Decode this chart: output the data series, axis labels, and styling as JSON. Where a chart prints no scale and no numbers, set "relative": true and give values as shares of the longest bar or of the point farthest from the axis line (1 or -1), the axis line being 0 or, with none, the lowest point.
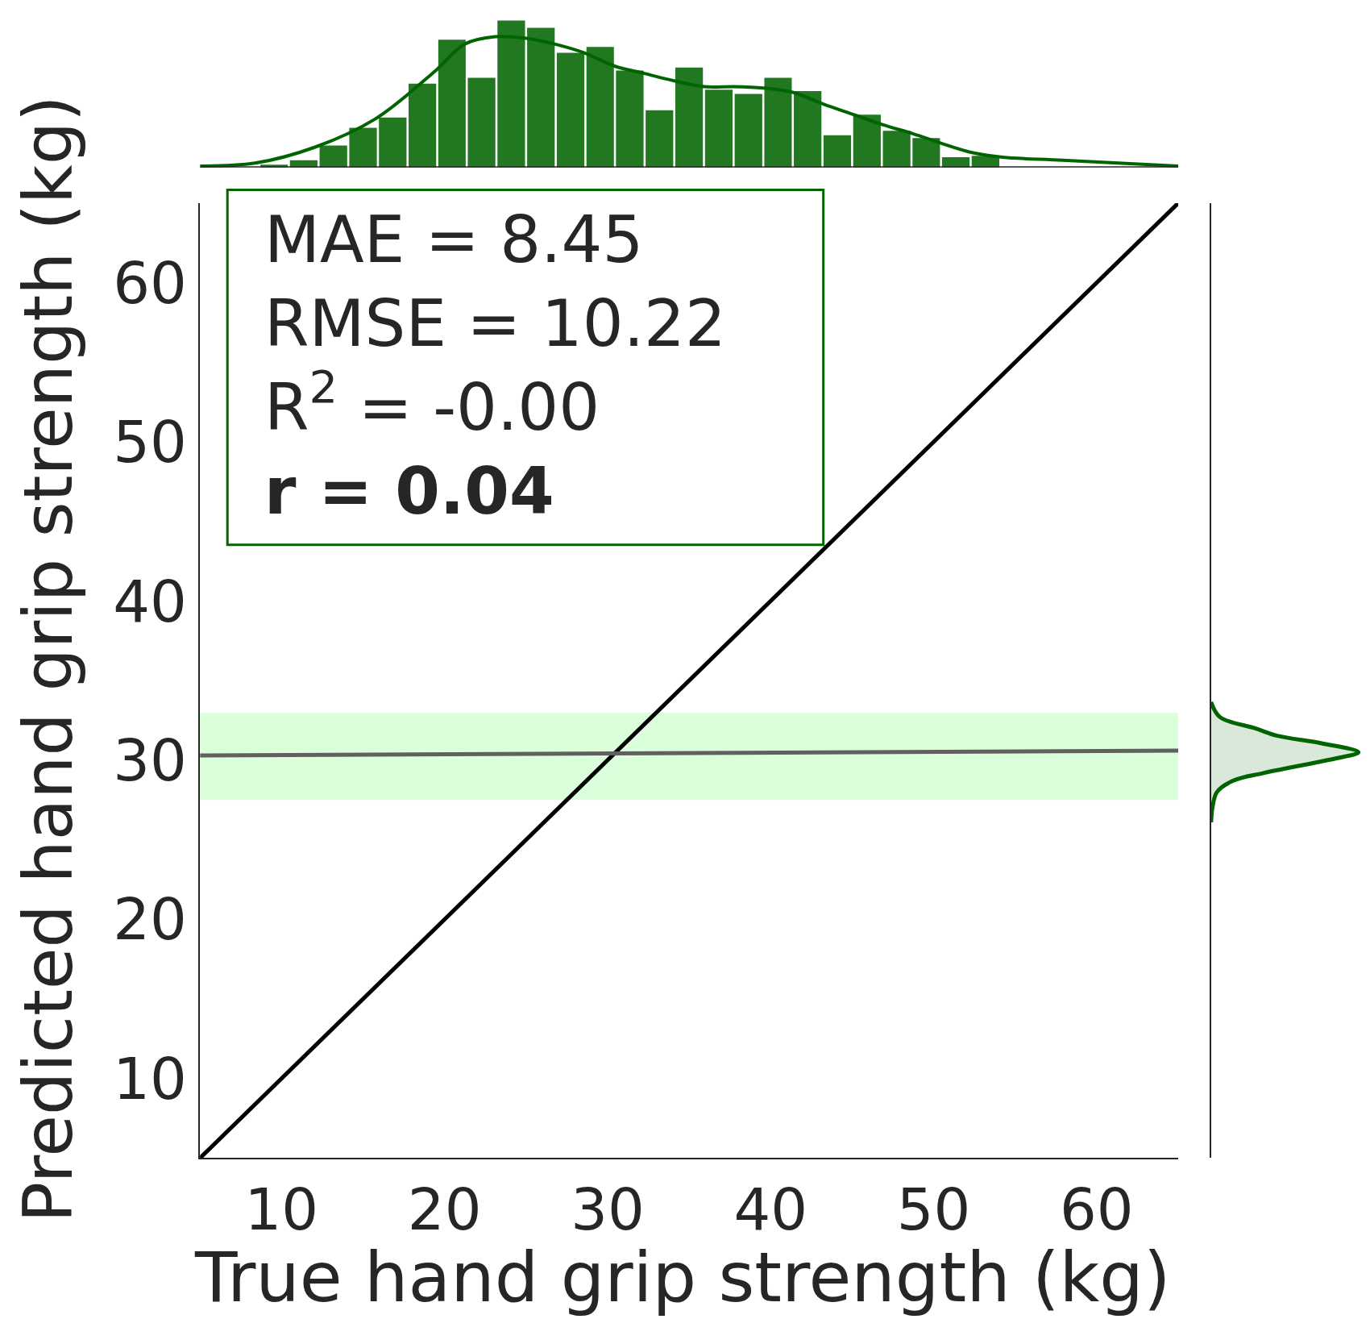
{
  "chart_data": [
    {
      "type": "histogram",
      "relative": true,
      "tick_labels": false,
      "xlim": [
        5,
        65
      ],
      "bins": [
        5,
        6.82,
        8.64,
        10.45,
        12.27,
        14.09,
        15.91,
        17.73,
        19.55,
        21.36,
        23.18,
        25,
        26.82,
        28.64,
        30.45,
        32.27,
        34.09,
        35.91,
        37.73,
        39.55,
        41.36,
        43.18,
        45,
        46.82,
        48.64,
        50.45,
        52.27,
        54.09,
        55.91,
        57.73,
        59.55,
        61.36,
        63.18,
        65
      ],
      "series": [
        {
          "type": "histogram",
          "color": "#217821",
          "values": [
            0,
            0,
            0.02,
            0.05,
            0.15,
            0.27,
            0.34,
            0.57,
            0.87,
            0.61,
            1,
            0.95,
            0.78,
            0.82,
            0.66,
            0.39,
            0.68,
            0.53,
            0.5,
            0.61,
            0.52,
            0.22,
            0.36,
            0.25,
            0.2,
            0.07,
            0.08,
            null,
            null,
            0,
            0,
            0,
            0
          ]
        },
        {
          "type": "line",
          "color": "#006400",
          "x": [
            5,
            8.37,
            12.09,
            15.74,
            19.46,
            21.24,
            23.1,
            24.93,
            26.75,
            28.57,
            30.43,
            32.26,
            34.08,
            35.94,
            37.76,
            39.58,
            41.4,
            43.27,
            45.09,
            46.91,
            48.73,
            50.59,
            52.41,
            54.24,
            57.92,
            65
          ],
          "values": [
            0.01,
            0.03,
            0.14,
            0.33,
            0.66,
            0.84,
            0.89,
            0.88,
            0.84,
            0.78,
            0.69,
            0.64,
            0.59,
            0.55,
            0.55,
            0.54,
            0.51,
            0.43,
            0.36,
            0.29,
            0.23,
            0.16,
            0.1,
            0.07,
            0.05,
            0.01
          ]
        }
      ]
    },
    {
      "type": "line",
      "xlabel": "True hand grip strength (kg)",
      "ylabel": "Predicted hand grip strength (kg)",
      "xlim": [
        5,
        65
      ],
      "ylim": [
        5,
        65
      ],
      "xticks": [
        10,
        20,
        30,
        40,
        50,
        60
      ],
      "yticks": [
        10,
        20,
        30,
        40,
        50,
        60
      ],
      "grid": false,
      "marker": "none",
      "bands": [
        {
          "axis": "y",
          "from": 27.5,
          "to": 33,
          "color": "#ccffcc"
        }
      ],
      "annotations": [
        "MAE = 8.45",
        "RMSE = 10.22",
        "R$^{2}$ = -0.00",
        "r = 0.04"
      ],
      "series": [
        {
          "color": "#000000",
          "x": [
            5,
            65
          ],
          "values": [
            5,
            65
          ]
        },
        {
          "color": "#606060",
          "x": [
            5,
            65
          ],
          "values": [
            30.3,
            30.6
          ]
        }
      ]
    },
    {
      "type": "line",
      "orientation": "horizontal",
      "relative": true,
      "tick_labels": false,
      "ylim": [
        5,
        65
      ],
      "series": [
        {
          "color": "#006400",
          "x": [
            26.1,
            27.06,
            28.0,
            28.71,
            29.18,
            29.65,
            30.12,
            30.5,
            31.06,
            31.53,
            32.0,
            32.71,
            33.65
          ],
          "values": [
            0,
            0.01,
            0.04,
            0.15,
            0.35,
            0.6,
            0.85,
            1,
            0.75,
            0.45,
            0.3,
            0.06,
            0
          ]
        }
      ]
    }
  ]
}
